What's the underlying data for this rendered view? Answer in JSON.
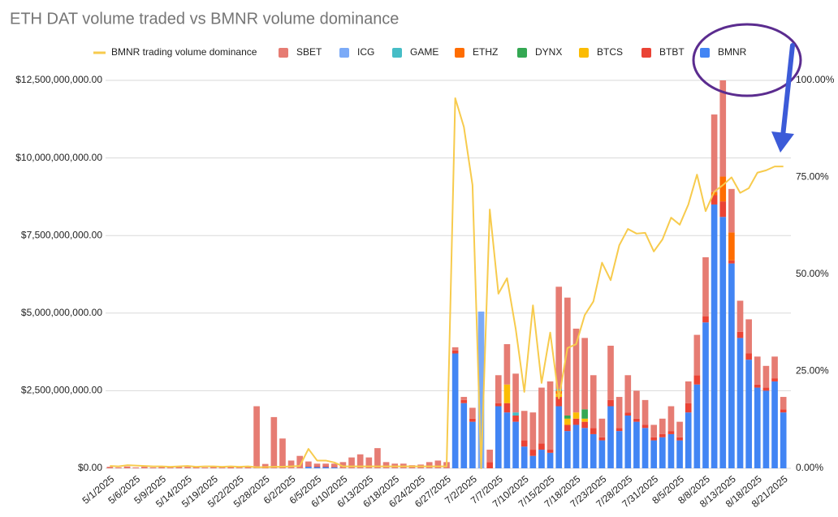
{
  "chart_data": {
    "type": "bar",
    "stacked": true,
    "title": "ETH DAT volume traded vs BMNR volume dominance",
    "categories": [
      "5/1/2025",
      null,
      null,
      "5/6/2025",
      null,
      null,
      "5/9/2025",
      null,
      null,
      "5/14/2025",
      null,
      null,
      "5/19/2025",
      null,
      null,
      "5/22/2025",
      null,
      null,
      "5/28/2025",
      null,
      null,
      "6/2/2025",
      null,
      null,
      "6/5/2025",
      null,
      null,
      "6/10/2025",
      null,
      null,
      "6/13/2025",
      null,
      null,
      "6/18/2025",
      null,
      null,
      "6/24/2025",
      null,
      null,
      "6/27/2025",
      null,
      null,
      "7/2/2025",
      null,
      null,
      "7/7/2025",
      null,
      null,
      "7/10/2025",
      null,
      null,
      "7/15/2025",
      null,
      null,
      "7/18/2025",
      null,
      null,
      "7/23/2025",
      null,
      null,
      "7/28/2025",
      null,
      null,
      "7/31/2025",
      null,
      null,
      "8/5/2025",
      null,
      null,
      "8/8/2025",
      null,
      null,
      "8/13/2025",
      null,
      null,
      "8/18/2025",
      null,
      null,
      "8/21/2025"
    ],
    "series": [
      {
        "name": "BMNR trading volume dominance",
        "type": "line",
        "axis": "y2",
        "color": "#f7cb4d",
        "values": [
          0.6,
          0.5,
          0.8,
          0.7,
          0.6,
          0.5,
          0.5,
          0.4,
          0.5,
          0.6,
          0.4,
          0.5,
          0.5,
          0.4,
          0.5,
          0.4,
          0.5,
          0.3,
          0.3,
          0.4,
          0.4,
          0.5,
          0.6,
          5,
          2,
          2,
          1.5,
          0.5,
          0.5,
          0.5,
          0.5,
          0.5,
          0.5,
          0.5,
          0.5,
          0.5,
          0.5,
          0.5,
          0.5,
          0.5,
          95.4,
          88,
          73,
          0,
          66.7,
          45,
          49,
          36,
          19.7,
          42,
          22,
          35,
          18,
          31,
          32,
          39.5,
          43,
          53,
          48.5,
          57.5,
          61.7,
          60.5,
          60.7,
          55.9,
          59,
          64.6,
          62.8,
          68,
          75.7,
          66.3,
          71.3,
          73,
          75,
          71,
          72.2,
          76.2,
          76.8,
          77.8,
          77.8
        ]
      },
      {
        "name": "SBET",
        "color": "#e67c73",
        "values": [
          40000000.0,
          30000000.0,
          50000000.0,
          30000000.0,
          40000000.0,
          30000000.0,
          30000000.0,
          40000000.0,
          30000000.0,
          50000000.0,
          30000000.0,
          30000000.0,
          40000000.0,
          30000000.0,
          40000000.0,
          30000000.0,
          50000000.0,
          2000000000.0,
          120000000.0,
          1650000000.0,
          950000000.0,
          250000000.0,
          400000000.0,
          150000000.0,
          80000000.0,
          80000000.0,
          100000000.0,
          200000000.0,
          350000000.0,
          450000000.0,
          350000000.0,
          650000000.0,
          200000000.0,
          150000000.0,
          150000000.0,
          100000000.0,
          120000000.0,
          200000000.0,
          250000000.0,
          200000000.0,
          100000000.0,
          100000000.0,
          350000000.0,
          0,
          400000000.0,
          900000000.0,
          1300000000.0,
          1250000000.0,
          950000000.0,
          1200000000.0,
          1800000000.0,
          2200000000.0,
          3300000000.0,
          3800000000.0,
          2700000000.0,
          2300000000.0,
          1700000000.0,
          600000000.0,
          1750000000.0,
          1000000000.0,
          1200000000.0,
          900000000.0,
          800000000.0,
          400000000.0,
          500000000.0,
          800000000.0,
          500000000.0,
          700000000.0,
          1300000000.0,
          1900000000.0,
          2500000000.0,
          3100000000.0,
          1400000000.0,
          1000000000.0,
          1100000000.0,
          900000000.0,
          700000000.0,
          700000000.0,
          400000000.0
        ]
      },
      {
        "name": "ICG",
        "color": "#7baaf7",
        "values": [
          0,
          0,
          0,
          0,
          0,
          0,
          0,
          0,
          0,
          0,
          0,
          0,
          0,
          0,
          0,
          0,
          0,
          0,
          0,
          0,
          0,
          0,
          0,
          0,
          0,
          0,
          0,
          0,
          0,
          0,
          0,
          0,
          0,
          0,
          0,
          0,
          0,
          0,
          0,
          0,
          0,
          0,
          0,
          5050000000.0,
          0,
          0,
          0,
          0,
          0,
          0,
          0,
          0,
          0,
          0,
          0,
          0,
          0,
          0,
          0,
          0,
          0,
          0,
          0,
          0,
          0,
          0,
          0,
          0,
          0,
          0,
          0,
          0,
          0,
          0,
          0,
          0,
          0,
          0,
          0
        ]
      },
      {
        "name": "GAME",
        "color": "#46bdc6",
        "values": [
          0,
          0,
          0,
          0,
          0,
          0,
          0,
          0,
          0,
          0,
          0,
          0,
          0,
          0,
          0,
          0,
          0,
          0,
          0,
          0,
          0,
          0,
          0,
          0,
          0,
          0,
          0,
          0,
          0,
          0,
          0,
          0,
          0,
          0,
          0,
          0,
          0,
          0,
          0,
          0,
          0,
          0,
          0,
          0,
          0,
          0,
          0,
          100000000.0,
          0,
          0,
          0,
          0,
          50000000.0,
          0,
          0,
          0,
          0,
          0,
          0,
          0,
          0,
          0,
          0,
          0,
          0,
          0,
          0,
          0,
          0,
          0,
          0,
          0,
          0,
          0,
          0,
          0,
          0,
          0,
          0
        ]
      },
      {
        "name": "ETHZ",
        "color": "#ff6d01",
        "values": [
          0,
          0,
          0,
          0,
          0,
          0,
          0,
          0,
          0,
          0,
          0,
          0,
          0,
          0,
          0,
          0,
          0,
          0,
          0,
          0,
          0,
          0,
          0,
          0,
          0,
          0,
          0,
          0,
          0,
          0,
          0,
          0,
          0,
          0,
          0,
          0,
          0,
          0,
          0,
          0,
          0,
          0,
          0,
          0,
          0,
          0,
          0,
          0,
          0,
          0,
          0,
          0,
          100000000.0,
          0,
          0,
          0,
          0,
          0,
          0,
          0,
          0,
          0,
          0,
          0,
          0,
          0,
          0,
          0,
          0,
          0,
          100000000.0,
          800000000.0,
          900000000.0,
          0,
          0,
          0,
          0,
          0,
          0
        ]
      },
      {
        "name": "DYNX",
        "color": "#34a853",
        "values": [
          0,
          0,
          0,
          0,
          0,
          0,
          0,
          0,
          0,
          0,
          0,
          0,
          0,
          0,
          0,
          0,
          0,
          0,
          0,
          0,
          0,
          0,
          0,
          0,
          0,
          0,
          0,
          0,
          0,
          0,
          0,
          0,
          0,
          0,
          0,
          0,
          0,
          0,
          0,
          0,
          0,
          0,
          0,
          0,
          0,
          0,
          0,
          0,
          0,
          0,
          0,
          0,
          0,
          100000000.0,
          0,
          300000000.0,
          0,
          0,
          0,
          0,
          0,
          0,
          0,
          0,
          0,
          0,
          0,
          0,
          0,
          0,
          0,
          0,
          0,
          0,
          0,
          0,
          0,
          0,
          0
        ]
      },
      {
        "name": "BTCS",
        "color": "#fbbc04",
        "values": [
          0,
          0,
          0,
          0,
          0,
          0,
          0,
          0,
          0,
          0,
          0,
          0,
          0,
          0,
          0,
          0,
          0,
          0,
          0,
          0,
          0,
          0,
          0,
          0,
          0,
          0,
          0,
          0,
          0,
          0,
          0,
          0,
          0,
          0,
          0,
          0,
          0,
          0,
          0,
          0,
          0,
          0,
          0,
          0,
          0,
          0,
          600000000.0,
          0,
          0,
          0,
          0,
          0,
          100000000.0,
          200000000.0,
          200000000.0,
          100000000.0,
          0,
          0,
          0,
          0,
          0,
          0,
          0,
          0,
          0,
          0,
          0,
          0,
          0,
          0,
          0,
          0,
          0,
          0,
          0,
          0,
          0,
          0,
          0
        ]
      },
      {
        "name": "BTBT",
        "color": "#ea4335",
        "values": [
          10000000.0,
          0,
          10000000.0,
          0,
          10000000.0,
          0,
          10000000.0,
          0,
          10000000.0,
          0,
          10000000.0,
          0,
          10000000.0,
          0,
          20000000.0,
          0,
          10000000.0,
          0,
          20000000.0,
          0,
          10000000.0,
          0,
          0,
          20000000.0,
          30000000.0,
          30000000.0,
          20000000.0,
          0,
          0,
          0,
          0,
          0,
          0,
          0,
          0,
          0,
          0,
          0,
          0,
          0,
          100000000.0,
          100000000.0,
          100000000.0,
          0,
          200000000.0,
          100000000.0,
          300000000.0,
          200000000.0,
          200000000.0,
          200000000.0,
          200000000.0,
          100000000.0,
          300000000.0,
          200000000.0,
          200000000.0,
          200000000.0,
          200000000.0,
          100000000.0,
          200000000.0,
          100000000.0,
          100000000.0,
          100000000.0,
          100000000.0,
          100000000.0,
          100000000.0,
          100000000.0,
          100000000.0,
          300000000.0,
          300000000.0,
          200000000.0,
          300000000.0,
          500000000.0,
          100000000.0,
          200000000.0,
          200000000.0,
          100000000.0,
          100000000.0,
          100000000.0,
          100000000.0
        ]
      },
      {
        "name": "BMNR",
        "color": "#4285f4",
        "values": [
          0,
          0,
          0,
          0,
          0,
          0,
          0,
          0,
          0,
          0,
          0,
          0,
          0,
          0,
          0,
          0,
          0,
          0,
          0,
          0,
          0,
          0,
          0,
          50000000.0,
          40000000.0,
          40000000.0,
          30000000.0,
          0,
          0,
          0,
          0,
          0,
          0,
          0,
          0,
          0,
          0,
          0,
          0,
          0,
          3700000000.0,
          2100000000.0,
          1500000000.0,
          0,
          0,
          2000000000.0,
          1800000000.0,
          1500000000.0,
          700000000.0,
          400000000.0,
          600000000.0,
          500000000.0,
          2000000000.0,
          1200000000.0,
          1400000000.0,
          1300000000.0,
          1100000000.0,
          900000000.0,
          2000000000.0,
          1200000000.0,
          1700000000.0,
          1500000000.0,
          1300000000.0,
          900000000.0,
          1000000000.0,
          1100000000.0,
          900000000.0,
          1800000000.0,
          2700000000.0,
          4700000000.0,
          8500000000.0,
          8100000000.0,
          6600000000.0,
          4200000000.0,
          3500000000.0,
          2600000000.0,
          2500000000.0,
          2800000000.0,
          1800000000.0
        ]
      }
    ],
    "ylim": [
      0,
      12500000000
    ],
    "yticks": [
      {
        "value": 0,
        "label": "$0.00"
      },
      {
        "value": 2500000000,
        "label": "$2,500,000,000.00"
      },
      {
        "value": 5000000000,
        "label": "$5,000,000,000.00"
      },
      {
        "value": 7500000000,
        "label": "$7,500,000,000.00"
      },
      {
        "value": 10000000000,
        "label": "$10,000,000,000.00"
      },
      {
        "value": 12500000000,
        "label": "$12,500,000,000.00"
      }
    ],
    "y2lim": [
      0,
      100
    ],
    "y2ticks": [
      {
        "value": 0,
        "label": "0.00%"
      },
      {
        "value": 25,
        "label": "25.00%"
      },
      {
        "value": 50,
        "label": "50.00%"
      },
      {
        "value": 75,
        "label": "75.00%"
      },
      {
        "value": 100,
        "label": "100.00%"
      }
    ],
    "grid": true
  }
}
